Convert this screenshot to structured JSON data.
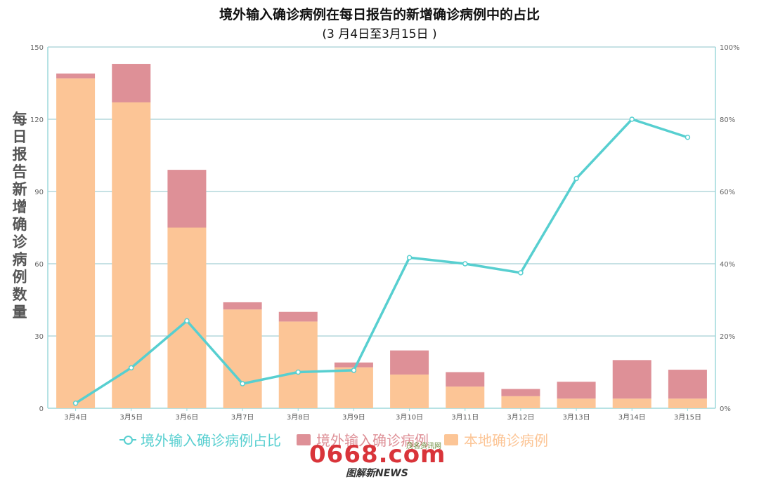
{
  "title": "境外输入确诊病例在每日报告的新增确诊病例中的占比",
  "subtitle": "(3 月4日至3月15日 )",
  "ylabel_left": "每日报告新增确诊病例数量",
  "watermark": {
    "main": "0668.com",
    "sub": "图解新NEWS",
    "small": "茂名资讯网"
  },
  "colors": {
    "local": "#fcc596",
    "imported": "#de9097",
    "ratio": "#57cfd0",
    "grid": "#8cc3c8",
    "axis": "#9dd9dc"
  },
  "chart_data": {
    "type": "bar",
    "stacked": true,
    "categories": [
      "3月4日",
      "3月5日",
      "3月6日",
      "3月7日",
      "3月8日",
      "3月9日",
      "3月10日",
      "3月11日",
      "3月12日",
      "3月13日",
      "3月14日",
      "3月15日"
    ],
    "series": [
      {
        "name": "本地确诊病例",
        "values": [
          137,
          127,
          75,
          41,
          36,
          17,
          14,
          9,
          5,
          4,
          4,
          4
        ]
      },
      {
        "name": "境外输入确诊病例",
        "values": [
          2,
          16,
          24,
          3,
          4,
          2,
          10,
          6,
          3,
          7,
          16,
          12
        ]
      }
    ],
    "line_series": {
      "name": "境外输入确诊病例占比",
      "axis": "right",
      "values": [
        1.4,
        11.2,
        24.2,
        6.8,
        10.0,
        10.5,
        41.7,
        40.0,
        37.5,
        63.6,
        80.0,
        75.0
      ]
    },
    "y_left": {
      "range": [
        0,
        150
      ],
      "ticks": [
        "0",
        "30",
        "60",
        "90",
        "120",
        "150"
      ]
    },
    "y_right": {
      "range": [
        0,
        100
      ],
      "ticks": [
        "0%",
        "20%",
        "40%",
        "60%",
        "80%",
        "100%"
      ]
    },
    "grid": true,
    "legend_position": "bottom"
  }
}
